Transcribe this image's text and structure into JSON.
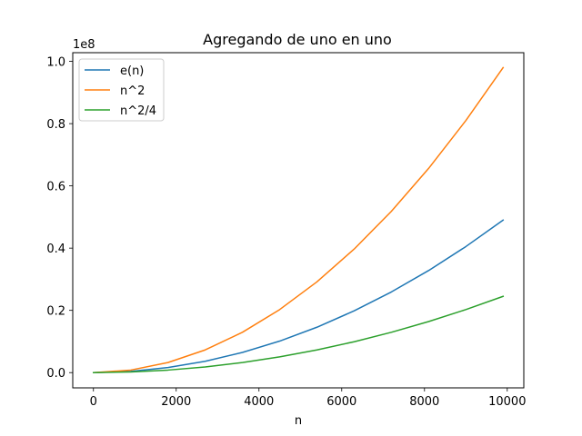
{
  "chart_data": {
    "type": "line",
    "title": "Agregando de uno en uno",
    "xlabel": "n",
    "ylabel": "",
    "y_offset_label": "1e8",
    "xlim": [
      -500,
      10400
    ],
    "ylim": [
      -4900000,
      102800000
    ],
    "x_ticks": [
      0,
      2000,
      4000,
      6000,
      8000,
      10000
    ],
    "x_tick_labels": [
      "0",
      "2000",
      "4000",
      "6000",
      "8000",
      "10000"
    ],
    "y_ticks": [
      0,
      20000000,
      40000000,
      60000000,
      80000000,
      100000000
    ],
    "y_tick_labels": [
      "0.0",
      "0.2",
      "0.4",
      "0.6",
      "0.8",
      "1.0"
    ],
    "grid": false,
    "legend_position": "upper-left",
    "x": [
      0,
      900,
      1800,
      2700,
      3600,
      4500,
      5400,
      6300,
      7200,
      8100,
      9000,
      9900
    ],
    "series": [
      {
        "name": "e(n)",
        "color": "#1f77b4",
        "values": [
          0,
          405000,
          1620000,
          3645000,
          6480000,
          10125000,
          14580000,
          19845000,
          25920000,
          32805000,
          40500000,
          49005000
        ]
      },
      {
        "name": "n^2",
        "color": "#ff7f0e",
        "values": [
          0,
          810000,
          3240000,
          7290000,
          12960000,
          20250000,
          29160000,
          39690000,
          51840000,
          65610000,
          81000000,
          98010000
        ]
      },
      {
        "name": "n^2/4",
        "color": "#2ca02c",
        "values": [
          0,
          202500,
          810000,
          1822500,
          3240000,
          5062500,
          7290000,
          9922500,
          12960000,
          16402500,
          20250000,
          24502500
        ]
      }
    ]
  }
}
